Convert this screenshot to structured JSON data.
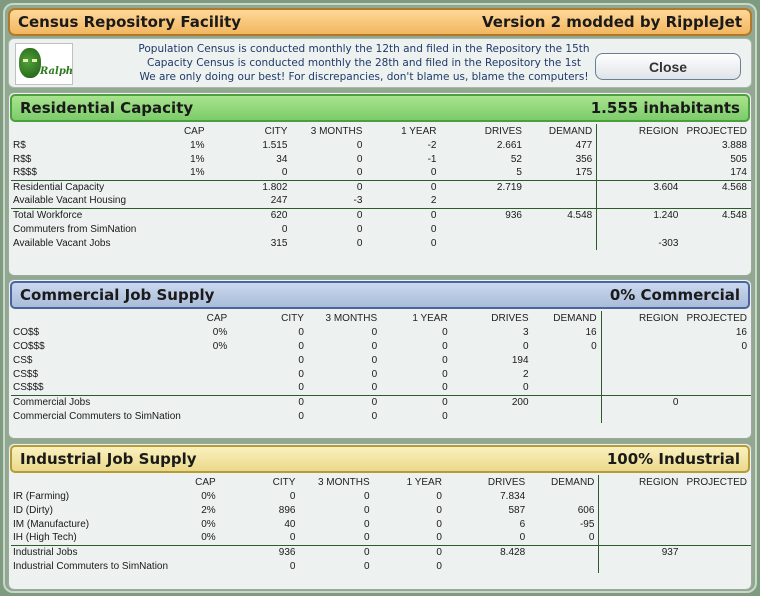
{
  "window": {
    "title": "Census Repository Facility",
    "version": "Version 2 modded by RippleJet"
  },
  "info": {
    "logo_text": "Ralphael",
    "lines": [
      "Population Census is conducted monthly the 12th and filed in the Repository the 15th",
      "Capacity Census is conducted monthly the 28th and filed in the Repository the 1st",
      "We are only doing our best! For discrepancies, don't blame us, blame the computers!"
    ],
    "close_label": "Close"
  },
  "columns": [
    "CAP",
    "CITY",
    "3 MONTHS",
    "1 YEAR",
    "DRIVES",
    "DEMAND",
    "REGION",
    "PROJECTED"
  ],
  "residential": {
    "title": "Residential Capacity",
    "summary": "1.555 inhabitants",
    "rows": [
      {
        "label": "R$",
        "cap": "1%",
        "city": "1.515",
        "m3": "0",
        "y1": "-2",
        "drives": "2.661",
        "demand": "477",
        "region": "",
        "proj": "3.888",
        "sep": false
      },
      {
        "label": "R$$",
        "cap": "1%",
        "city": "34",
        "m3": "0",
        "y1": "-1",
        "drives": "52",
        "demand": "356",
        "region": "",
        "proj": "505",
        "sep": false
      },
      {
        "label": "R$$$",
        "cap": "1%",
        "city": "0",
        "m3": "0",
        "y1": "0",
        "drives": "5",
        "demand": "175",
        "region": "",
        "proj": "174",
        "sep": false
      },
      {
        "label": "Residential Capacity",
        "cap": "",
        "city": "1.802",
        "m3": "0",
        "y1": "0",
        "drives": "2.719",
        "demand": "",
        "region": "3.604",
        "proj": "4.568",
        "sep": true
      },
      {
        "label": "Available Vacant Housing",
        "cap": "",
        "city": "247",
        "m3": "-3",
        "y1": "2",
        "drives": "",
        "demand": "",
        "region": "",
        "proj": "",
        "sep": false
      },
      {
        "label": "Total Workforce",
        "cap": "",
        "city": "620",
        "m3": "0",
        "y1": "0",
        "drives": "936",
        "demand": "4.548",
        "region": "1.240",
        "proj": "4.548",
        "sep": true
      },
      {
        "label": "Commuters from SimNation",
        "cap": "",
        "city": "0",
        "m3": "0",
        "y1": "0",
        "drives": "",
        "demand": "",
        "region": "",
        "proj": "",
        "sep": false
      },
      {
        "label": "Available Vacant Jobs",
        "cap": "",
        "city": "315",
        "m3": "0",
        "y1": "0",
        "drives": "",
        "demand": "",
        "region": "-303",
        "proj": "",
        "sep": false
      }
    ]
  },
  "commercial": {
    "title": "Commercial Job Supply",
    "summary": "0% Commercial",
    "rows": [
      {
        "label": "CO$$",
        "cap": "0%",
        "city": "0",
        "m3": "0",
        "y1": "0",
        "drives": "3",
        "demand": "16",
        "region": "",
        "proj": "16",
        "sep": false
      },
      {
        "label": "CO$$$",
        "cap": "0%",
        "city": "0",
        "m3": "0",
        "y1": "0",
        "drives": "0",
        "demand": "0",
        "region": "",
        "proj": "0",
        "sep": false
      },
      {
        "label": "CS$",
        "cap": "",
        "city": "0",
        "m3": "0",
        "y1": "0",
        "drives": "194",
        "demand": "",
        "region": "",
        "proj": "",
        "sep": false
      },
      {
        "label": "CS$$",
        "cap": "",
        "city": "0",
        "m3": "0",
        "y1": "0",
        "drives": "2",
        "demand": "",
        "region": "",
        "proj": "",
        "sep": false
      },
      {
        "label": "CS$$$",
        "cap": "",
        "city": "0",
        "m3": "0",
        "y1": "0",
        "drives": "0",
        "demand": "",
        "region": "",
        "proj": "",
        "sep": false
      },
      {
        "label": "Commercial Jobs",
        "cap": "",
        "city": "0",
        "m3": "0",
        "y1": "0",
        "drives": "200",
        "demand": "",
        "region": "0",
        "proj": "",
        "sep": true
      },
      {
        "label": "Commercial Commuters to SimNation",
        "cap": "",
        "city": "0",
        "m3": "0",
        "y1": "0",
        "drives": "",
        "demand": "",
        "region": "",
        "proj": "",
        "sep": false
      }
    ]
  },
  "industrial": {
    "title": "Industrial Job Supply",
    "summary": "100% Industrial",
    "rows": [
      {
        "label": "IR (Farming)",
        "cap": "0%",
        "city": "0",
        "m3": "0",
        "y1": "0",
        "drives": "7.834",
        "demand": "",
        "region": "",
        "proj": "",
        "sep": false
      },
      {
        "label": "ID (Dirty)",
        "cap": "2%",
        "city": "896",
        "m3": "0",
        "y1": "0",
        "drives": "587",
        "demand": "606",
        "region": "",
        "proj": "",
        "sep": false
      },
      {
        "label": "IM (Manufacture)",
        "cap": "0%",
        "city": "40",
        "m3": "0",
        "y1": "0",
        "drives": "6",
        "demand": "-95",
        "region": "",
        "proj": "",
        "sep": false
      },
      {
        "label": "IH (High Tech)",
        "cap": "0%",
        "city": "0",
        "m3": "0",
        "y1": "0",
        "drives": "0",
        "demand": "0",
        "region": "",
        "proj": "",
        "sep": false
      },
      {
        "label": "Industrial Jobs",
        "cap": "",
        "city": "936",
        "m3": "0",
        "y1": "0",
        "drives": "8.428",
        "demand": "",
        "region": "937",
        "proj": "",
        "sep": true
      },
      {
        "label": "Industrial Commuters to SimNation",
        "cap": "",
        "city": "0",
        "m3": "0",
        "y1": "0",
        "drives": "",
        "demand": "",
        "region": "",
        "proj": "",
        "sep": false
      }
    ]
  }
}
